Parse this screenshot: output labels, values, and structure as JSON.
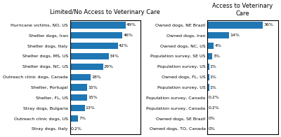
{
  "chart_data": [
    {
      "type": "bar",
      "orientation": "horizontal",
      "title": "Limited/No Access to Veterinary Care",
      "categories": [
        "Hurricane victims, NO, US",
        "Shelter dogs, Iran",
        "Shelter dogs, Italy",
        "Shelter dogs, MS, US",
        "Shelter dogs, NC, US",
        "Outreach clinic dogs, Canada",
        "Shelter, Portugal",
        "Shelter, FL, US",
        "Stray dogs, Bulgaria",
        "Outreach clinic dogs, US",
        "Stray dogs, Italy"
      ],
      "values": [
        49,
        46,
        42,
        34,
        29,
        18,
        15,
        15,
        13,
        7,
        0.2
      ],
      "value_labels": [
        "49%",
        "46%",
        "42%",
        "34%",
        "29%",
        "18%",
        "15%",
        "15%",
        "13%",
        "7%",
        "0.2%"
      ],
      "xlim": [
        0,
        62
      ],
      "data_labels": true,
      "tick_labels": "y",
      "grid": false
    },
    {
      "type": "bar",
      "orientation": "horizontal",
      "title": "Access to Veterinary Care",
      "categories": [
        "Owned dogs, NE Brazil",
        "Owned dogs, Iran",
        "Owned dogs, NC, US",
        "Population survey, SE US",
        "Population survey, US",
        "Owned dogs, FL, US",
        "Population survey, US",
        "Population survey, Canada",
        "Population survey, Canada",
        "Owned dogs, SE Brazil",
        "Owned dogs, TO, Canada"
      ],
      "values": [
        36,
        14,
        4,
        3,
        1,
        1,
        1,
        0.2,
        0.2,
        0,
        0
      ],
      "value_labels": [
        "36%",
        "14%",
        "4%",
        "3%",
        "1%",
        "1%",
        "1%",
        "0.2%",
        "0.2%",
        "0%",
        "0%"
      ],
      "xlim": [
        0,
        46
      ],
      "data_labels": true,
      "tick_labels": "y",
      "grid": false
    }
  ]
}
